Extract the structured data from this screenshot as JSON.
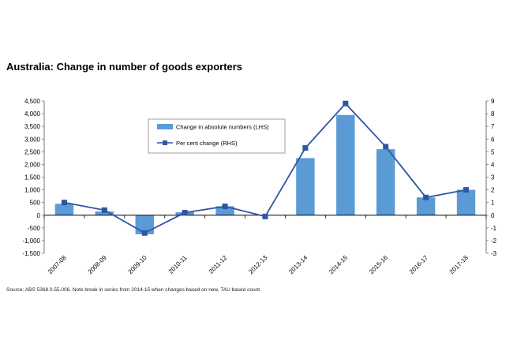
{
  "chart_data": {
    "type": "bar",
    "title": "Australia: Change in number of goods exporters",
    "categories": [
      "2007-08",
      "2008-09",
      "2009-10",
      "2010-11",
      "2011-12",
      "2012-13",
      "2013-14",
      "2014-15",
      "2015-16",
      "2016-17",
      "2017-18"
    ],
    "series": [
      {
        "name": "Change in absolute numbers (LHS)",
        "type": "bar",
        "axis": "left",
        "color": "#5b9bd5",
        "values": [
          450,
          150,
          -750,
          120,
          350,
          0,
          2250,
          3950,
          2600,
          700,
          1000
        ]
      },
      {
        "name": "Per cent change (RHS)",
        "type": "line",
        "axis": "right",
        "color": "#2f55a4",
        "values": [
          1.0,
          0.4,
          -1.4,
          0.2,
          0.7,
          -0.1,
          5.3,
          8.8,
          5.4,
          1.4,
          2.0
        ]
      }
    ],
    "ylim_left": [
      -1500,
      4500
    ],
    "yticks_left": [
      "-1,500",
      "-1,000",
      "-500",
      "0",
      "500",
      "1,000",
      "1,500",
      "2,000",
      "2,500",
      "3,000",
      "3,500",
      "4,000",
      "4,500"
    ],
    "ylim_right": [
      -3,
      9
    ],
    "yticks_right": [
      "-3",
      "-2",
      "-1",
      "0",
      "1",
      "2",
      "3",
      "4",
      "5",
      "6",
      "7",
      "8",
      "9"
    ],
    "grid": false,
    "legend_position": "top-left"
  },
  "source_note": "Source: ABS 5368.0.55.006.  Note break in series from 2014-15 when changes based on new, TAU based count."
}
